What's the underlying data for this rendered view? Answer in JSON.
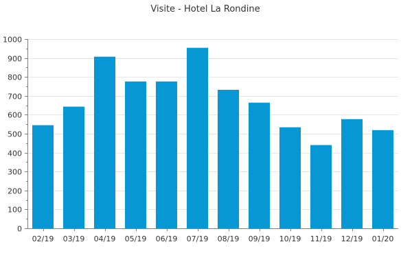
{
  "chart_data": {
    "type": "bar",
    "title": "Visite - Hotel La Rondine",
    "xlabel": "",
    "ylabel": "",
    "categories": [
      "02/19",
      "03/19",
      "04/19",
      "05/19",
      "06/19",
      "07/19",
      "08/19",
      "09/19",
      "10/19",
      "11/19",
      "12/19",
      "01/20"
    ],
    "values": [
      545,
      643,
      907,
      776,
      776,
      954,
      732,
      664,
      534,
      440,
      577,
      519
    ],
    "ylim": [
      0,
      1000
    ],
    "yticks": [
      0,
      100,
      200,
      300,
      400,
      500,
      600,
      700,
      800,
      900,
      1000
    ],
    "grid": true,
    "bar_color": "#0797d5",
    "grid_color": "#e6e6e6",
    "axis_color": "#7f7f7f"
  }
}
